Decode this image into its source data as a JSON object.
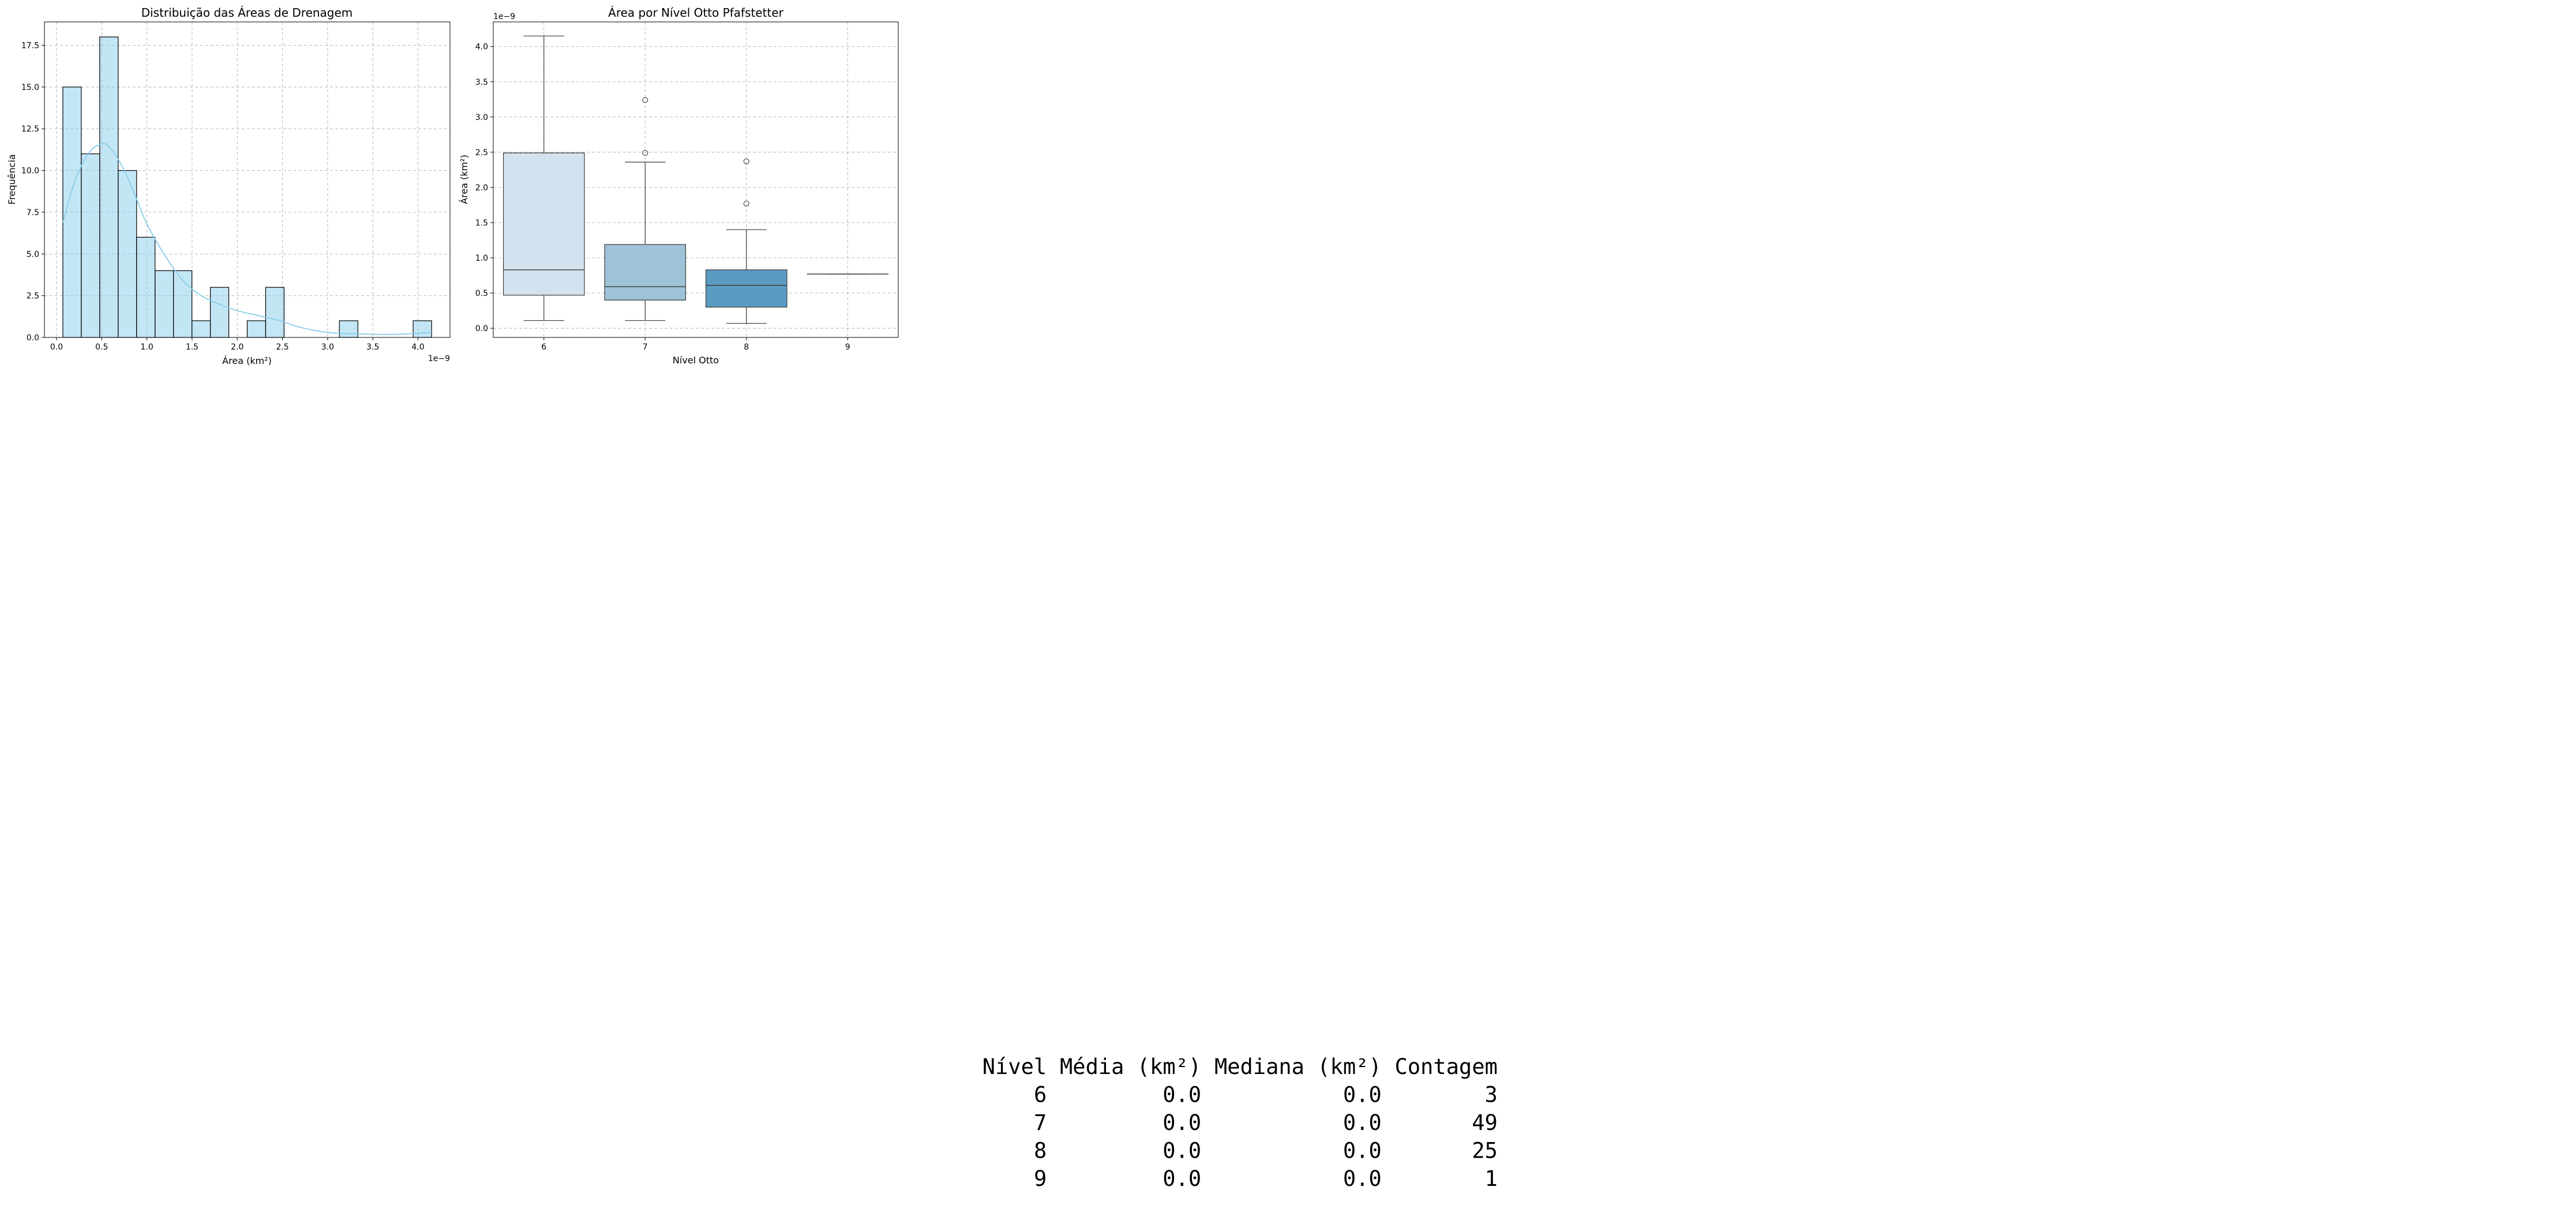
{
  "chart_data": [
    {
      "type": "bar",
      "title": "Distribuição das Áreas de Drenagem",
      "xlabel": "Área (km²)",
      "ylabel": "Frequência",
      "x_scale_label": "1e−9",
      "bin_edges": [
        0.07,
        0.274,
        0.478,
        0.682,
        0.886,
        1.09,
        1.294,
        1.498,
        1.702,
        1.906,
        2.11,
        2.314,
        2.518,
        2.722,
        2.926,
        3.13,
        3.334,
        3.538,
        3.742,
        3.946,
        4.15
      ],
      "values": [
        15,
        11,
        18,
        10,
        6,
        4,
        4,
        1,
        3,
        0,
        1,
        3,
        0,
        0,
        0,
        1,
        0,
        0,
        0,
        1
      ],
      "kde": {
        "x": [
          0.07,
          0.2,
          0.35,
          0.5,
          0.6,
          0.75,
          0.9,
          1.0,
          1.2,
          1.4,
          1.6,
          1.8,
          2.0,
          2.2,
          2.4,
          2.5,
          2.7,
          3.0,
          3.3,
          3.7,
          4.0,
          4.15
        ],
        "y": [
          6.9,
          9.3,
          11.0,
          11.6,
          11.3,
          10.0,
          8.1,
          6.8,
          4.9,
          3.4,
          2.5,
          2.0,
          1.6,
          1.35,
          1.1,
          0.95,
          0.6,
          0.3,
          0.22,
          0.18,
          0.25,
          0.3
        ]
      },
      "xlim": [
        -0.134,
        4.354
      ],
      "ylim": [
        0,
        18.9
      ],
      "xticks": [
        0.0,
        0.5,
        1.0,
        1.5,
        2.0,
        2.5,
        3.0,
        3.5,
        4.0
      ],
      "xtick_labels": [
        "0.0",
        "0.5",
        "1.0",
        "1.5",
        "2.0",
        "2.5",
        "3.0",
        "3.5",
        "4.0"
      ],
      "yticks": [
        0,
        2.5,
        5.0,
        7.5,
        10.0,
        12.5,
        15.0,
        17.5
      ],
      "ytick_labels": [
        "0.0",
        "2.5",
        "5.0",
        "7.5",
        "10.0",
        "12.5",
        "15.0",
        "17.5"
      ],
      "grid": true,
      "colors": {
        "bar": "#87ceeb",
        "kde": "#87ceeb",
        "edge": "#000000",
        "grid": "#b0b0b0"
      }
    },
    {
      "type": "box",
      "title": "Área por Nível Otto Pfafstetter",
      "xlabel": "Nível Otto",
      "ylabel": "Área (km²)",
      "y_scale_label": "1e−9",
      "categories": [
        "6",
        "7",
        "8",
        "9"
      ],
      "boxes": [
        {
          "whisker_low": 0.11,
          "q1": 0.47,
          "median": 0.83,
          "q3": 2.49,
          "whisker_high": 4.15,
          "outliers": [],
          "color": "#d2e2ef"
        },
        {
          "whisker_low": 0.11,
          "q1": 0.4,
          "median": 0.59,
          "q3": 1.19,
          "whisker_high": 2.36,
          "outliers": [
            2.49,
            3.24
          ],
          "color": "#9ec3d7"
        },
        {
          "whisker_low": 0.07,
          "q1": 0.3,
          "median": 0.61,
          "q3": 0.83,
          "whisker_high": 1.4,
          "outliers": [
            1.77,
            2.37
          ],
          "color": "#5b9bc2"
        },
        {
          "whisker_low": 0.77,
          "q1": 0.77,
          "median": 0.77,
          "q3": 0.77,
          "whisker_high": 0.77,
          "outliers": [],
          "color": "#2b7bba"
        }
      ],
      "ylim": [
        -0.13,
        4.35
      ],
      "yticks": [
        0.0,
        0.5,
        1.0,
        1.5,
        2.0,
        2.5,
        3.0,
        3.5,
        4.0
      ],
      "ytick_labels": [
        "0.0",
        "0.5",
        "1.0",
        "1.5",
        "2.0",
        "2.5",
        "3.0",
        "3.5",
        "4.0"
      ],
      "grid": true
    }
  ],
  "stats_table": {
    "columns": [
      "Nível",
      "Média (km²)",
      "Mediana (km²)",
      "Contagem"
    ],
    "rows": [
      [
        "6",
        "0.0",
        "0.0",
        "3"
      ],
      [
        "7",
        "0.0",
        "0.0",
        "49"
      ],
      [
        "8",
        "0.0",
        "0.0",
        "25"
      ],
      [
        "9",
        "0.0",
        "0.0",
        "1"
      ]
    ]
  }
}
